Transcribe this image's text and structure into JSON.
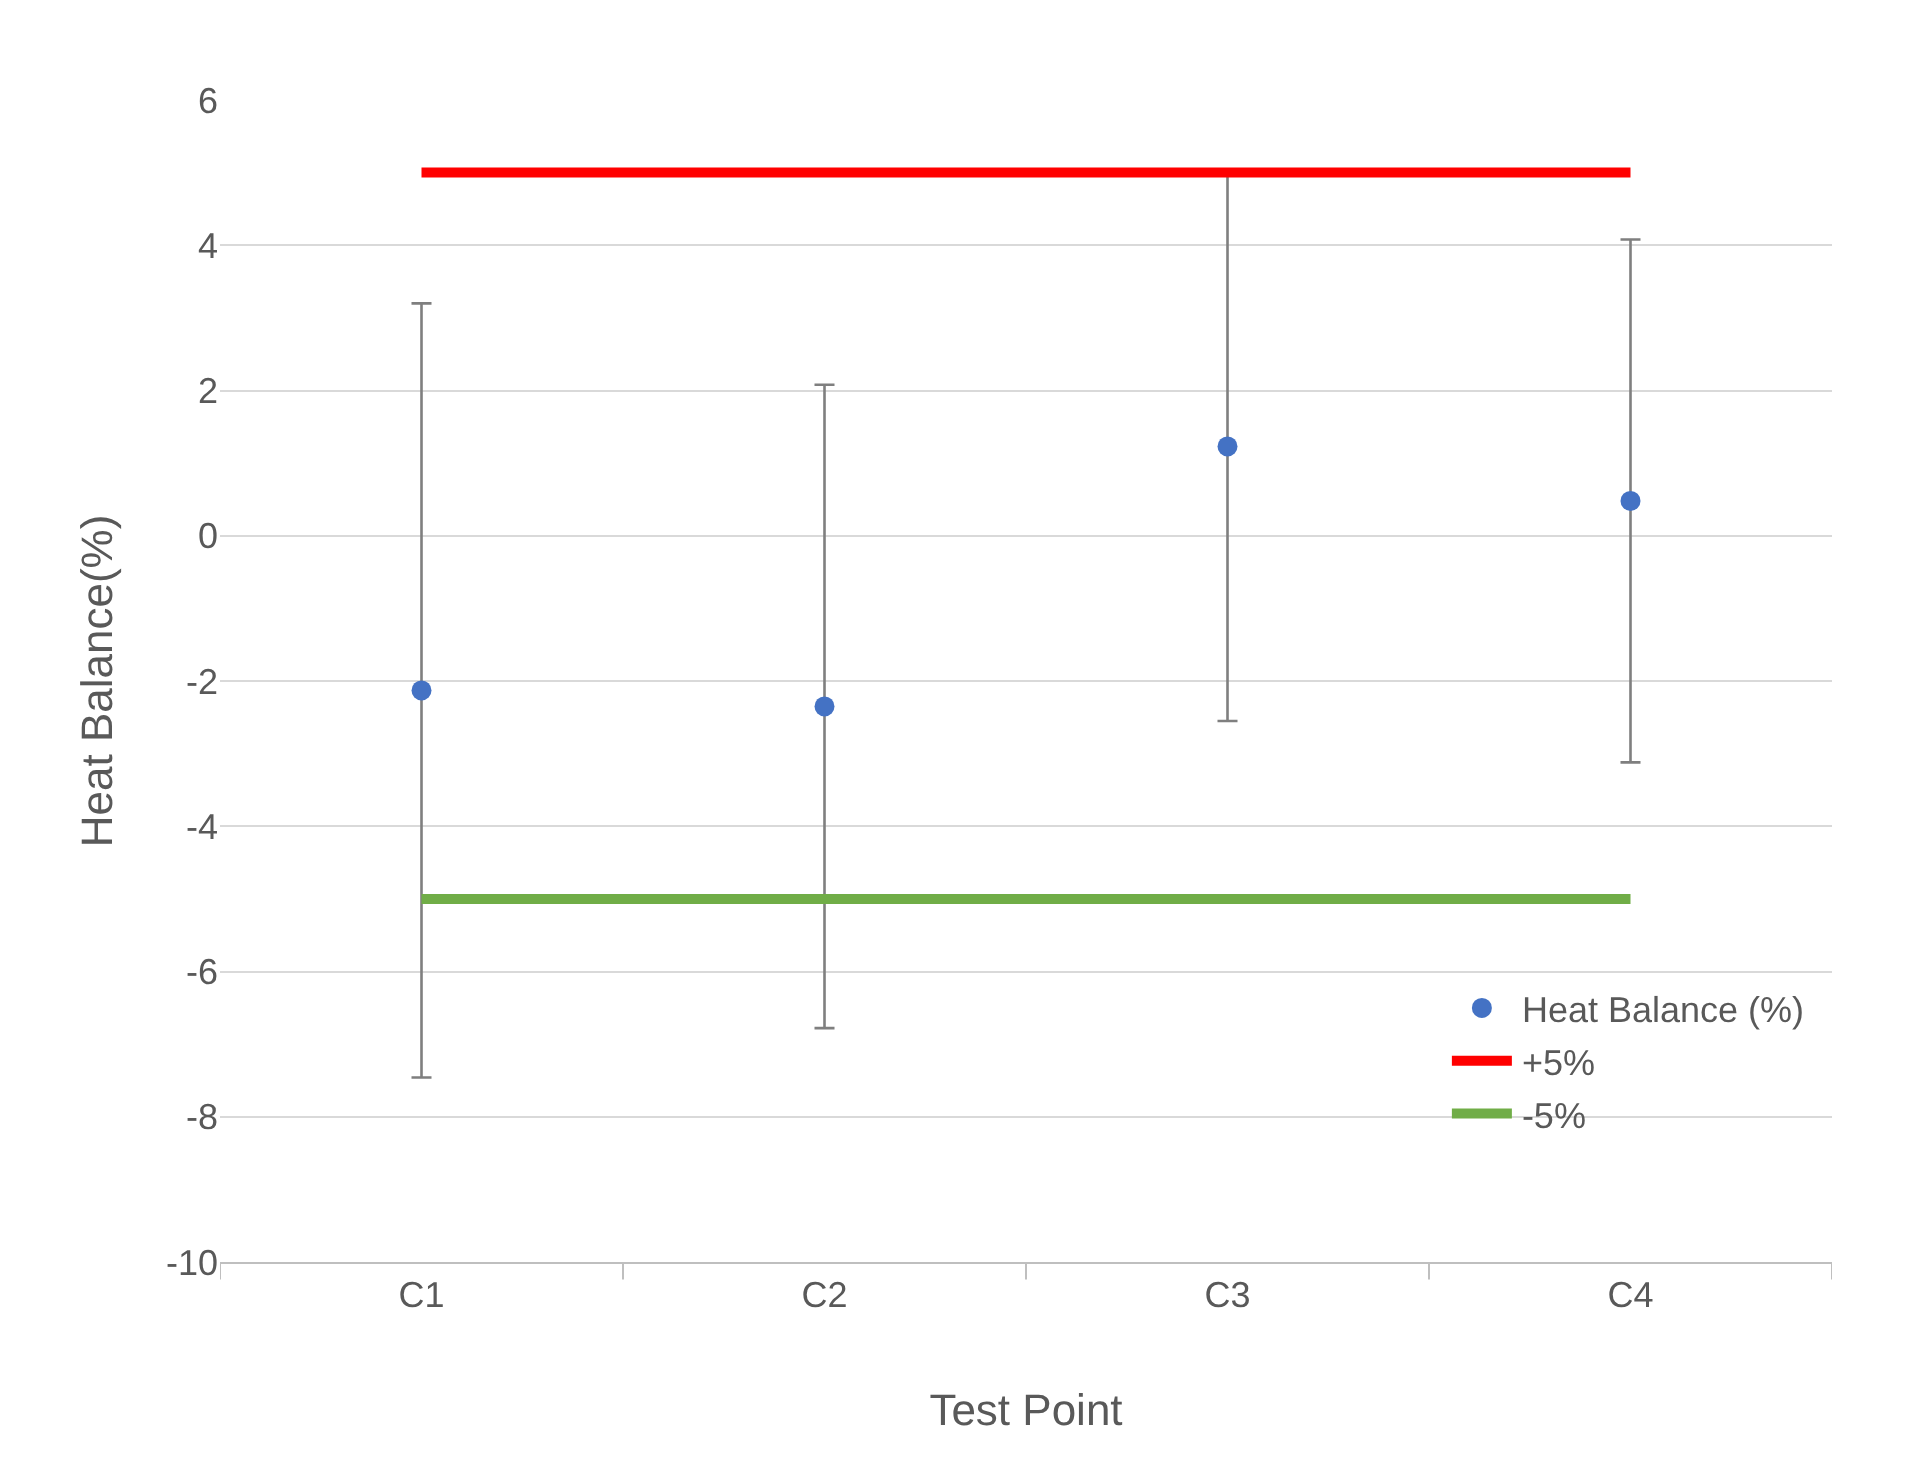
{
  "chart_data": {
    "type": "scatter",
    "xlabel": "Test Point",
    "ylabel": "Heat Balance(%)",
    "categories": [
      "C1",
      "C2",
      "C3",
      "C4"
    ],
    "series": [
      {
        "name": "Heat Balance (%)",
        "marker": "circle",
        "color": "#4472c4",
        "values": [
          -2.13,
          -2.35,
          1.23,
          0.48
        ],
        "errors": [
          5.33,
          4.43,
          3.78,
          3.6
        ]
      },
      {
        "name": "+5%",
        "type": "line",
        "marker": "none",
        "color": "#ff0000",
        "values": [
          5,
          5,
          5,
          5
        ]
      },
      {
        "name": "-5%",
        "type": "line",
        "marker": "none",
        "color": "#70ad47",
        "values": [
          -5,
          -5,
          -5,
          -5
        ]
      }
    ],
    "ylim": [
      -10,
      6
    ],
    "yticks": [
      -10,
      -8,
      -6,
      -4,
      -2,
      0,
      2,
      4,
      6
    ],
    "grid": "y",
    "legend": "bottom right"
  }
}
